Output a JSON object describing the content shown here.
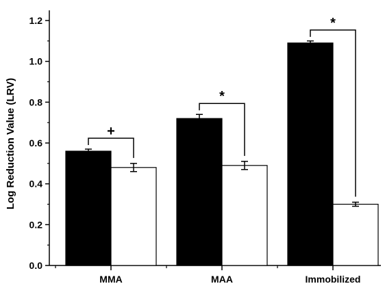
{
  "chart_data": {
    "type": "bar",
    "ylabel": "Log Reduction Value (LRV)",
    "xlabel": "",
    "ylim": [
      0,
      1.25
    ],
    "yticks": [
      0.0,
      0.2,
      0.4,
      0.6,
      0.8,
      1.0,
      1.2
    ],
    "ytick_labels": [
      "0.0",
      "0.2",
      "0.4",
      "0.6",
      "0.8",
      "1.0",
      "1.2"
    ],
    "categories": [
      "MMA",
      "MAA",
      "Immobilized"
    ],
    "series": [
      {
        "values": [
          0.56,
          0.72,
          1.09
        ],
        "errors": [
          0.01,
          0.02,
          0.01
        ],
        "color": "#000000"
      },
      {
        "values": [
          0.48,
          0.49,
          0.3
        ],
        "errors": [
          0.02,
          0.02,
          0.01
        ],
        "color": "#ffffff"
      }
    ],
    "significance": [
      "+",
      "*",
      "*"
    ],
    "grid": false,
    "legend": "none"
  }
}
